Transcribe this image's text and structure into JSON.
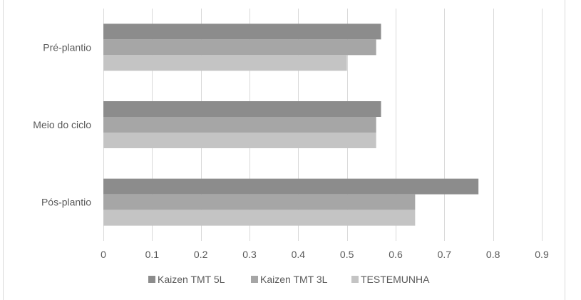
{
  "chart_data": {
    "type": "bar",
    "orientation": "horizontal",
    "categories": [
      "Pré-plantio",
      "Meio do ciclo",
      "Pós-plantio"
    ],
    "series": [
      {
        "name": "Kaizen TMT 5L",
        "color": "#8c8c8c",
        "values": [
          0.57,
          0.57,
          0.77
        ]
      },
      {
        "name": "Kaizen TMT 3L",
        "color": "#a6a6a6",
        "values": [
          0.56,
          0.56,
          0.64
        ]
      },
      {
        "name": "TESTEMUNHA",
        "color": "#c4c4c4",
        "values": [
          0.5,
          0.56,
          0.64
        ]
      }
    ],
    "xlim": [
      0,
      0.9
    ],
    "xticks": [
      "0",
      "0.1",
      "0.2",
      "0.3",
      "0.4",
      "0.5",
      "0.6",
      "0.7",
      "0.8",
      "0.9"
    ],
    "grid": true,
    "legend_position": "bottom",
    "title": "",
    "xlabel": "",
    "ylabel": ""
  }
}
